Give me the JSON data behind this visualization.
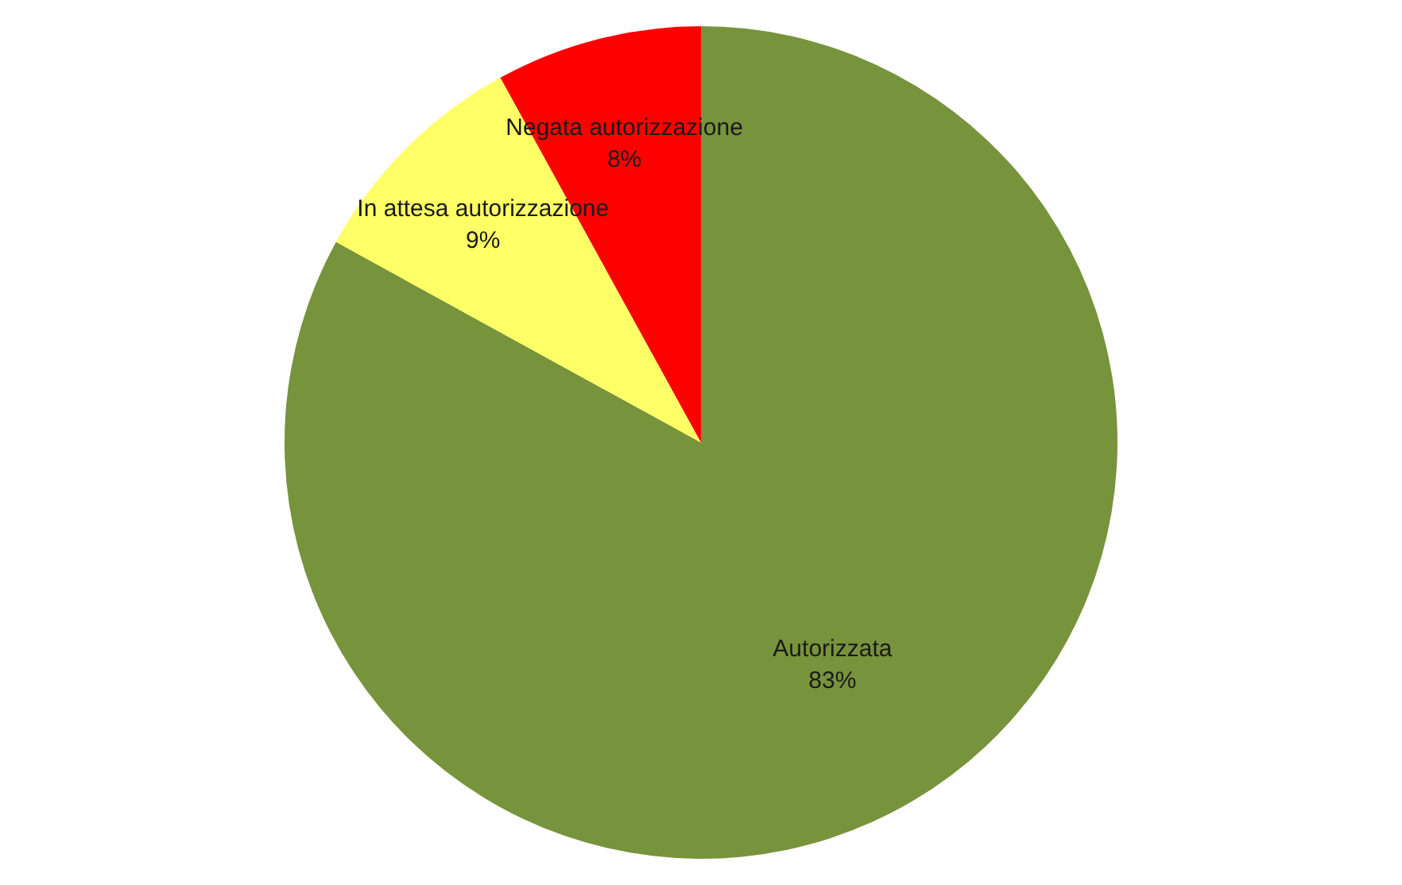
{
  "chart_data": {
    "type": "pie",
    "categories": [
      "Autorizzata",
      "In attesa autorizzazione",
      "Negata autorizzazione"
    ],
    "values": [
      83,
      9,
      8
    ],
    "colors": [
      "#77933c",
      "#ffff66",
      "#ff0000"
    ],
    "value_labels": [
      "83%",
      "9%",
      "8%"
    ]
  }
}
